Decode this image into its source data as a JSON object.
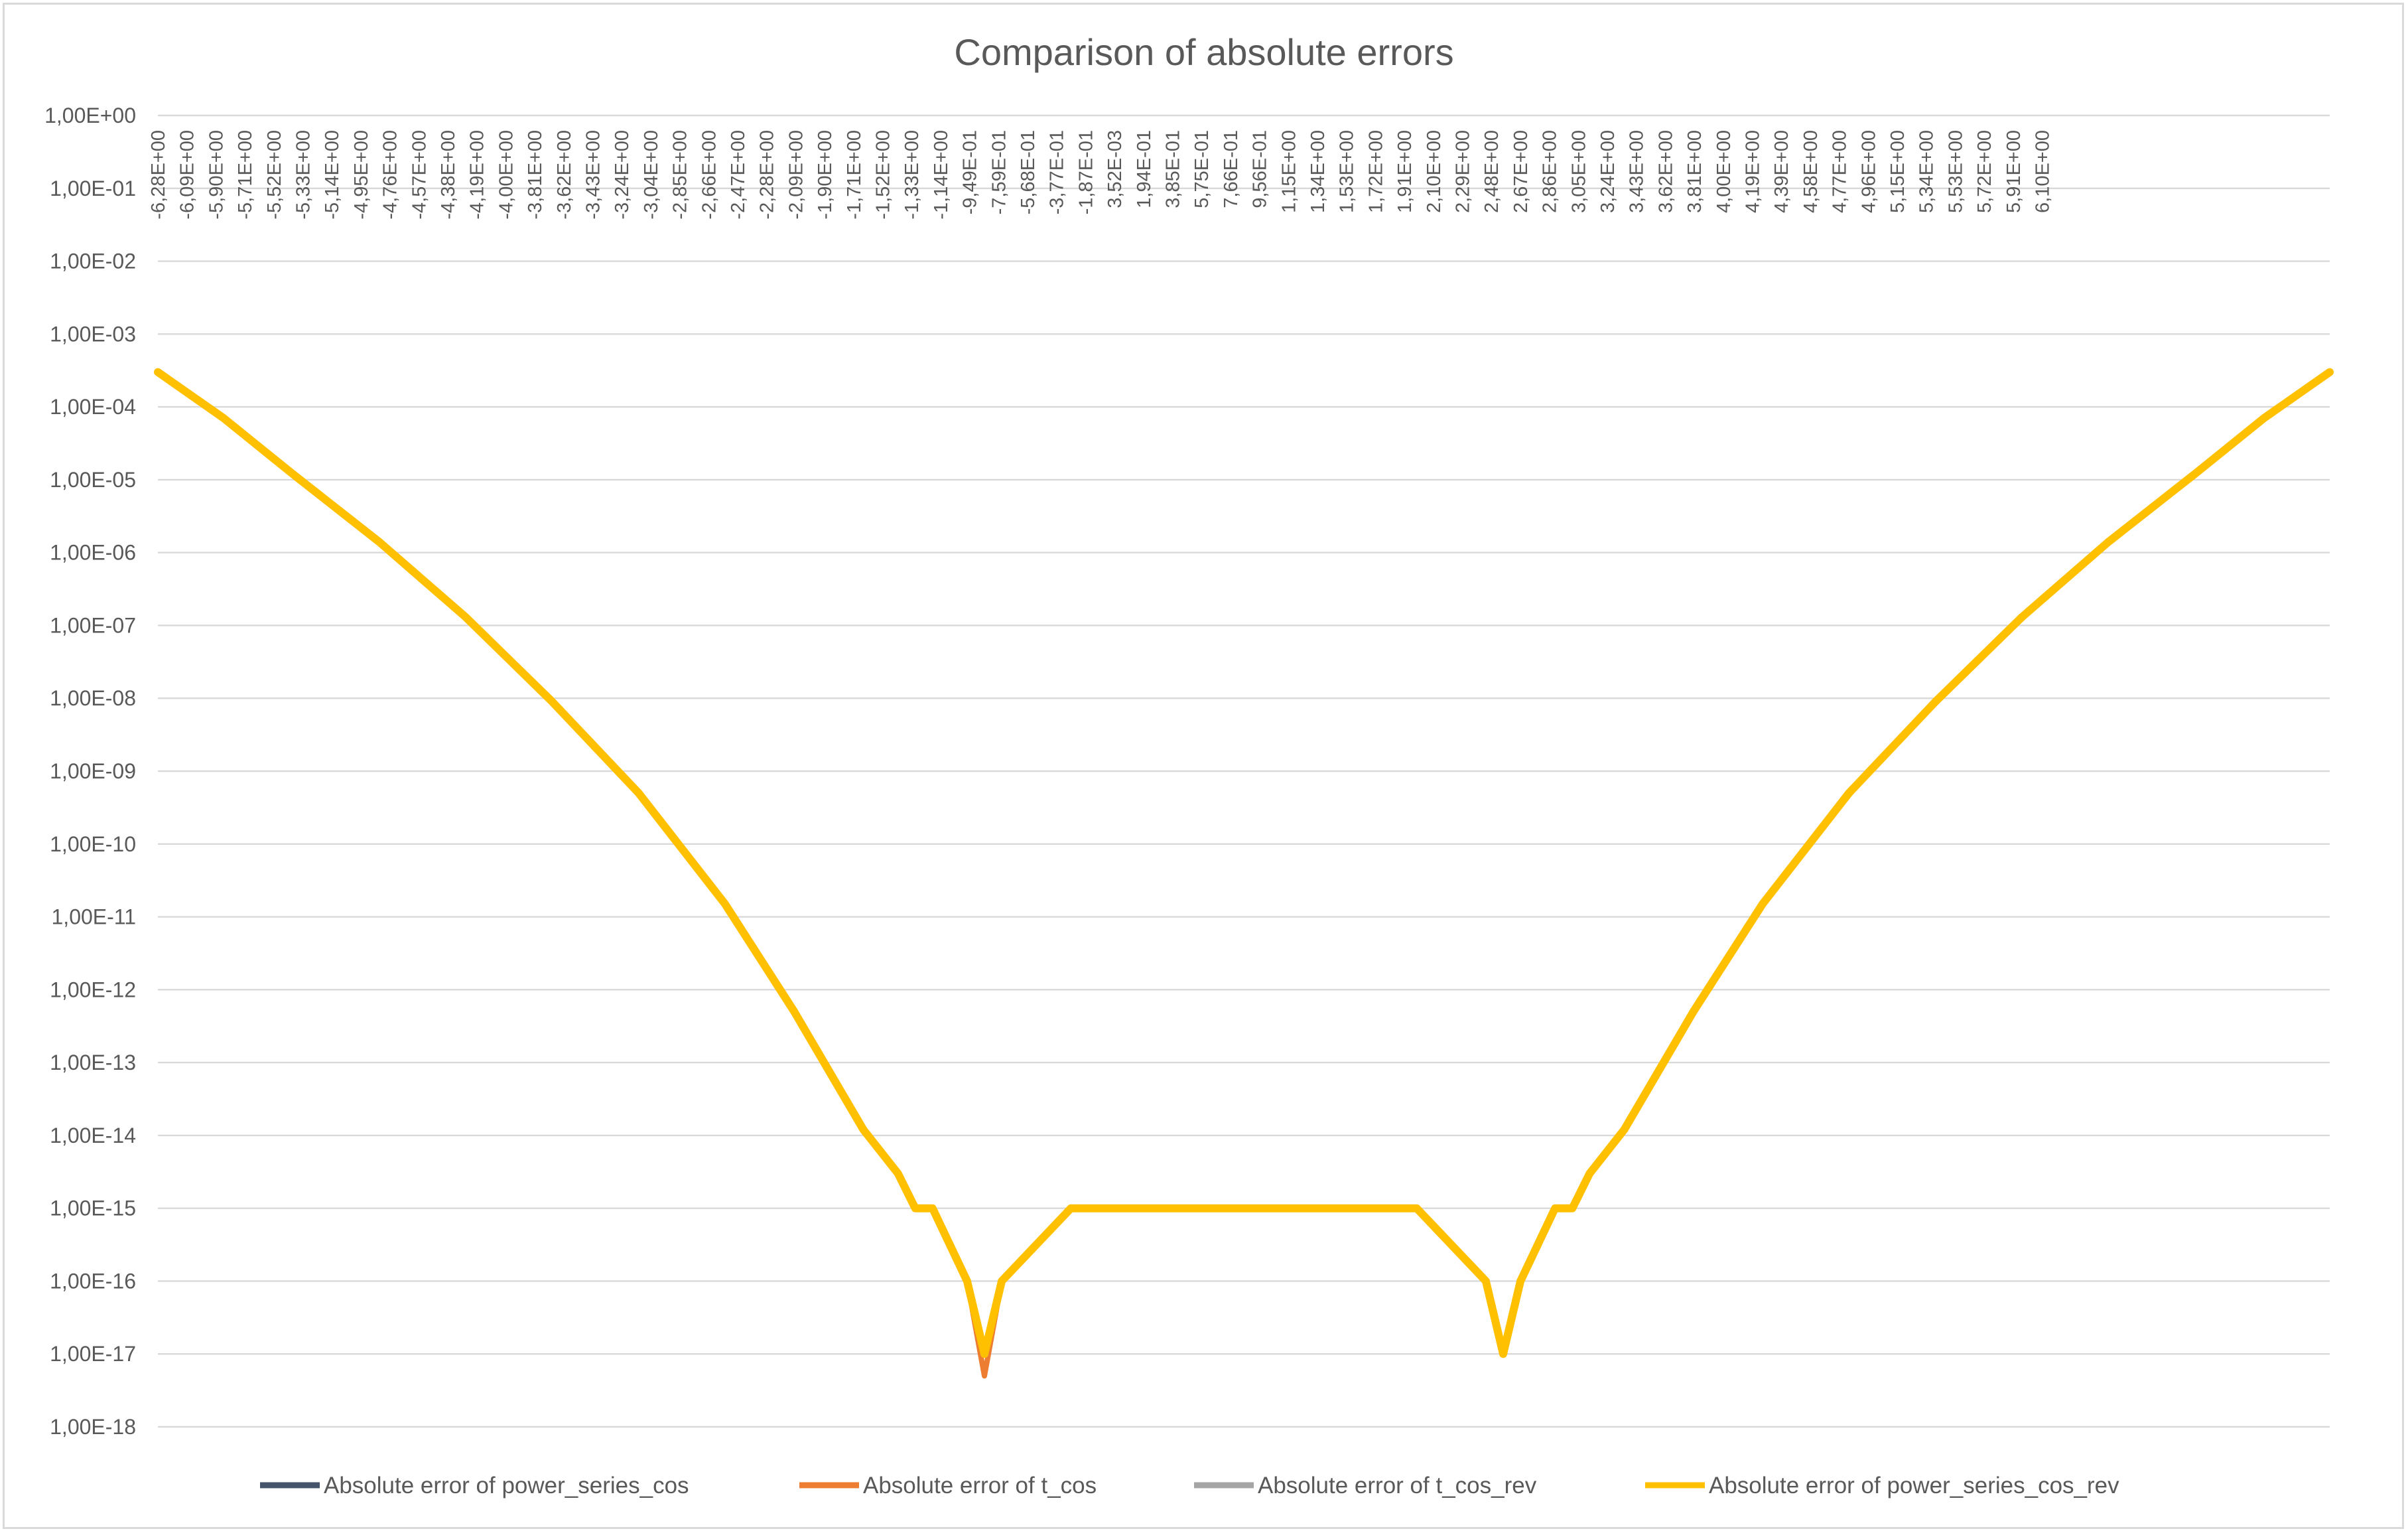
{
  "chart_data": {
    "type": "line",
    "title": "Comparison of absolute errors",
    "xlabel": "",
    "ylabel": "",
    "y_scale": "log",
    "ylim": [
      1e-18,
      1
    ],
    "xlim": [
      -6.28,
      6.28
    ],
    "grid": true,
    "legend_position": "bottom",
    "x_tick_labels": [
      "-6,28E+00",
      "-6,09E+00",
      "-5,90E+00",
      "-5,71E+00",
      "-5,52E+00",
      "-5,33E+00",
      "-5,14E+00",
      "-4,95E+00",
      "-4,76E+00",
      "-4,57E+00",
      "-4,38E+00",
      "-4,19E+00",
      "-4,00E+00",
      "-3,81E+00",
      "-3,62E+00",
      "-3,43E+00",
      "-3,24E+00",
      "-3,04E+00",
      "-2,85E+00",
      "-2,66E+00",
      "-2,47E+00",
      "-2,28E+00",
      "-2,09E+00",
      "-1,90E+00",
      "-1,71E+00",
      "-1,52E+00",
      "-1,33E+00",
      "-1,14E+00",
      "-9,49E-01",
      "-7,59E-01",
      "-5,68E-01",
      "-3,77E-01",
      "-1,87E-01",
      "3,52E-03",
      "1,94E-01",
      "3,85E-01",
      "5,75E-01",
      "7,66E-01",
      "9,56E-01",
      "1,15E+00",
      "1,34E+00",
      "1,53E+00",
      "1,72E+00",
      "1,91E+00",
      "2,10E+00",
      "2,29E+00",
      "2,48E+00",
      "2,67E+00",
      "2,86E+00",
      "3,05E+00",
      "3,24E+00",
      "3,43E+00",
      "3,62E+00",
      "3,81E+00",
      "4,00E+00",
      "4,19E+00",
      "4,39E+00",
      "4,58E+00",
      "4,77E+00",
      "4,96E+00",
      "5,15E+00",
      "5,34E+00",
      "5,53E+00",
      "5,72E+00",
      "5,91E+00",
      "6,10E+00"
    ],
    "y_tick_labels": [
      "1,00E+00",
      "1,00E-01",
      "1,00E-02",
      "1,00E-03",
      "1,00E-04",
      "1,00E-05",
      "1,00E-06",
      "1,00E-07",
      "1,00E-08",
      "1,00E-09",
      "1,00E-10",
      "1,00E-11",
      "1,00E-12",
      "1,00E-13",
      "1,00E-14",
      "1,00E-15",
      "1,00E-16",
      "1,00E-17",
      "1,00E-18"
    ],
    "x": [
      -6.28,
      -5.9,
      -5.5,
      -5.0,
      -4.5,
      -4.0,
      -3.5,
      -3.0,
      -2.6,
      -2.2,
      -2.0,
      -1.9,
      -1.8,
      -1.6,
      -1.5,
      -1.4,
      -1.0,
      -0.5,
      0.0,
      0.5,
      1.0,
      1.4,
      1.5,
      1.6,
      1.8,
      1.9,
      2.0,
      2.2,
      2.6,
      3.0,
      3.5,
      4.0,
      4.5,
      5.0,
      5.5,
      5.9,
      6.28
    ],
    "series": [
      {
        "name": "Absolute error of power_series_cos",
        "color": "#44546a",
        "values": [
          0.0003,
          7e-05,
          1.2e-05,
          1.4e-06,
          1.3e-07,
          9e-09,
          5e-10,
          1.5e-11,
          5e-13,
          1.2e-14,
          3e-15,
          1e-15,
          1e-15,
          1e-16,
          1e-17,
          1e-16,
          1e-15,
          1e-15,
          1e-15,
          1e-15,
          1e-15,
          1e-16,
          1e-17,
          1e-16,
          1e-15,
          1e-15,
          3e-15,
          1.2e-14,
          5e-13,
          1.5e-11,
          5e-10,
          9e-09,
          1.3e-07,
          1.4e-06,
          1.2e-05,
          7e-05,
          0.0003
        ]
      },
      {
        "name": "Absolute error of t_cos",
        "color": "#ed7d31",
        "values": [
          0.0003,
          7e-05,
          1.2e-05,
          1.4e-06,
          1.3e-07,
          9e-09,
          5e-10,
          1.5e-11,
          5e-13,
          1.2e-14,
          3e-15,
          1e-15,
          1e-15,
          1e-16,
          5e-18,
          1e-16,
          1e-15,
          1e-15,
          1e-15,
          1e-15,
          1e-15,
          1e-16,
          1e-17,
          1e-16,
          1e-15,
          1e-15,
          3e-15,
          1.2e-14,
          5e-13,
          1.5e-11,
          5e-10,
          9e-09,
          1.3e-07,
          1.4e-06,
          1.2e-05,
          7e-05,
          0.0003
        ]
      },
      {
        "name": "Absolute error of t_cos_rev",
        "color": "#a5a5a5",
        "values": [
          0.0003,
          7e-05,
          1.2e-05,
          1.4e-06,
          1.3e-07,
          9e-09,
          5e-10,
          1.5e-11,
          5e-13,
          1.2e-14,
          3e-15,
          1e-15,
          1e-15,
          1e-16,
          1e-17,
          1e-16,
          1e-15,
          1e-15,
          1e-15,
          1e-15,
          1e-15,
          1e-16,
          1e-17,
          1e-16,
          1e-15,
          1e-15,
          3e-15,
          1.2e-14,
          5e-13,
          1.5e-11,
          5e-10,
          9e-09,
          1.3e-07,
          1.4e-06,
          1.2e-05,
          7e-05,
          0.0003
        ]
      },
      {
        "name": "Absolute error of power_series_cos_rev",
        "color": "#ffc000",
        "values": [
          0.0003,
          7e-05,
          1.2e-05,
          1.4e-06,
          1.3e-07,
          9e-09,
          5e-10,
          1.5e-11,
          5e-13,
          1.2e-14,
          3e-15,
          1e-15,
          1e-15,
          1e-16,
          1e-17,
          1e-16,
          1e-15,
          1e-15,
          1e-15,
          1e-15,
          1e-15,
          1e-16,
          1e-17,
          1e-16,
          1e-15,
          1e-15,
          3e-15,
          1.2e-14,
          5e-13,
          1.5e-11,
          5e-10,
          9e-09,
          1.3e-07,
          1.4e-06,
          1.2e-05,
          7e-05,
          0.0003
        ]
      }
    ]
  }
}
